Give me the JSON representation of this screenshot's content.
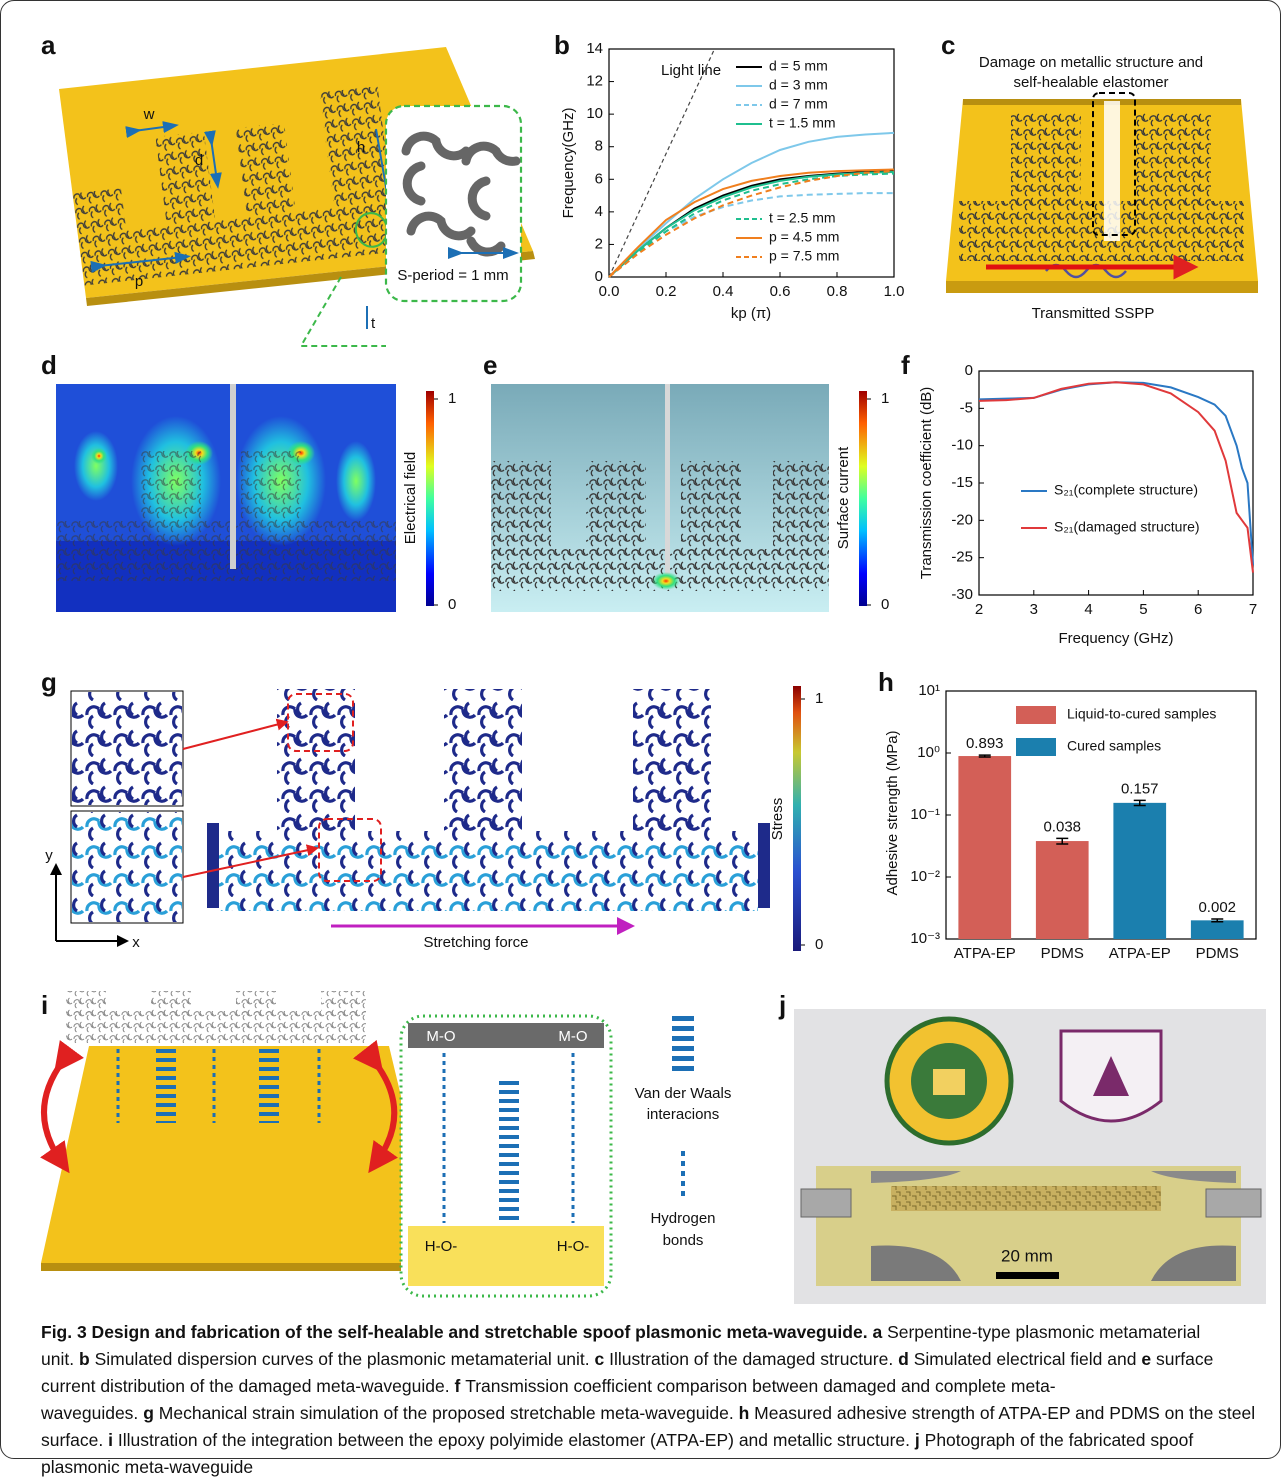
{
  "panels": {
    "a": {
      "letter": "a",
      "dims": [
        "w",
        "d",
        "h",
        "p",
        "t"
      ],
      "inset_label": "S-period = 1 mm"
    },
    "b": {
      "letter": "b",
      "type": "line",
      "xlabel": "kp (π)",
      "ylabel": "Frequency(GHz)",
      "annotation": "Light line",
      "xlim": [
        0,
        1
      ],
      "ylim": [
        0,
        14
      ],
      "xticks": [
        {
          "value": 0,
          "label": "0.0"
        },
        {
          "value": 0.2,
          "label": "0.2"
        },
        {
          "value": 0.4,
          "label": "0.4"
        },
        {
          "value": 0.6,
          "label": "0.6"
        },
        {
          "value": 0.8,
          "label": "0.8"
        },
        {
          "value": 1,
          "label": "1.0"
        }
      ],
      "yticks": [
        0,
        2,
        4,
        6,
        8,
        10,
        12,
        14
      ],
      "light_line": {
        "x": [
          0,
          0.37
        ],
        "values": [
          0,
          14
        ]
      },
      "x": [
        0,
        0.1,
        0.2,
        0.3,
        0.4,
        0.5,
        0.6,
        0.7,
        0.8,
        0.9,
        1.0
      ],
      "series": [
        {
          "name": "d = 5 mm",
          "color": "#000000",
          "dashed": false,
          "values": [
            0,
            1.6,
            3.0,
            4.2,
            5.0,
            5.6,
            6.0,
            6.2,
            6.35,
            6.45,
            6.5
          ]
        },
        {
          "name": "d = 3 mm",
          "color": "#7ec8ea",
          "dashed": false,
          "values": [
            0,
            1.7,
            3.3,
            4.8,
            6.0,
            7.0,
            7.8,
            8.3,
            8.6,
            8.75,
            8.85
          ]
        },
        {
          "name": "d = 7 mm",
          "color": "#7ec8ea",
          "dashed": true,
          "values": [
            0,
            1.5,
            2.8,
            3.7,
            4.3,
            4.7,
            4.95,
            5.05,
            5.1,
            5.15,
            5.15
          ]
        },
        {
          "name": "t = 1.5 mm",
          "color": "#1fbf8f",
          "dashed": false,
          "values": [
            0,
            1.6,
            3.0,
            4.1,
            4.9,
            5.5,
            5.9,
            6.15,
            6.3,
            6.4,
            6.45
          ]
        },
        {
          "name": "t = 2.5 mm",
          "color": "#1fbf8f",
          "dashed": true,
          "values": [
            0,
            1.5,
            2.8,
            3.9,
            4.7,
            5.3,
            5.7,
            6.0,
            6.2,
            6.3,
            6.35
          ]
        },
        {
          "name": "p = 4.5 mm",
          "color": "#f07f1e",
          "dashed": false,
          "values": [
            0,
            1.8,
            3.5,
            4.6,
            5.4,
            5.9,
            6.2,
            6.4,
            6.5,
            6.55,
            6.6
          ]
        },
        {
          "name": "p = 7.5 mm",
          "color": "#f07f1e",
          "dashed": true,
          "values": [
            0,
            1.4,
            2.6,
            3.6,
            4.4,
            5.0,
            5.5,
            5.9,
            6.2,
            6.4,
            6.5
          ]
        }
      ]
    },
    "c": {
      "letter": "c",
      "title_lines": [
        "Damage on metallic structure and",
        "self-healable elastomer"
      ],
      "bottom_label": "Transmitted SSPP"
    },
    "d": {
      "letter": "d",
      "colorbar": {
        "label": "Electrical field",
        "ticks": [
          0,
          1
        ]
      }
    },
    "e": {
      "letter": "e",
      "colorbar": {
        "label": "Surface current",
        "ticks": [
          0,
          1
        ]
      }
    },
    "f": {
      "letter": "f",
      "type": "line",
      "xlabel": "Frequency (GHz)",
      "ylabel": "Transmission coefficient (dB)",
      "xlim": [
        2,
        7
      ],
      "ylim": [
        -30,
        0
      ],
      "xticks": [
        2,
        3,
        4,
        5,
        6,
        7
      ],
      "yticks": [
        -30,
        -25,
        -20,
        -15,
        -10,
        -5,
        0
      ],
      "x": [
        2,
        2.5,
        3,
        3.5,
        4,
        4.5,
        5,
        5.5,
        6,
        6.3,
        6.5,
        6.7,
        6.8,
        6.9,
        7.0
      ],
      "series": [
        {
          "name": "S₂₁(complete structure)",
          "color": "#2a78c4",
          "dashed": false,
          "values": [
            -3.8,
            -3.7,
            -3.6,
            -2.5,
            -1.8,
            -1.5,
            -1.6,
            -2.2,
            -3.5,
            -4.5,
            -6,
            -10,
            -13,
            -15,
            -26
          ]
        },
        {
          "name": "S₂₁(damaged structure)",
          "color": "#e0393b",
          "dashed": false,
          "values": [
            -4,
            -3.9,
            -3.6,
            -2.4,
            -1.7,
            -1.5,
            -1.8,
            -3,
            -5.5,
            -8,
            -12,
            -19,
            -20,
            -21,
            -27
          ]
        }
      ]
    },
    "g": {
      "letter": "g",
      "force_label": "Stretching force",
      "axis_y": "y",
      "axis_x": "x",
      "colorbar": {
        "label": "Stress",
        "ticks": [
          0,
          1
        ]
      }
    },
    "h": {
      "letter": "h",
      "type": "bar",
      "log_scale": true,
      "ylabel": "Adhesive strength (MPa)",
      "categories": [
        "ATPA-EP",
        "PDMS",
        "ATPA-EP",
        "PDMS"
      ],
      "ylim": [
        0.001,
        10
      ],
      "yticks": [
        {
          "value": 0.001,
          "label": "10⁻³"
        },
        {
          "value": 0.01,
          "label": "10⁻²"
        },
        {
          "value": 0.1,
          "label": "10⁻¹"
        },
        {
          "value": 1,
          "label": "10⁰"
        },
        {
          "value": 10,
          "label": "10¹"
        }
      ],
      "series": [
        {
          "name": "Liquid-to-cured samples",
          "color": "#d35f57",
          "values": [
            0.893,
            0.038,
            null,
            null
          ],
          "errors": [
            0.03,
            0.004,
            null,
            null
          ]
        },
        {
          "name": "Cured samples",
          "color": "#1b7fae",
          "values": [
            null,
            null,
            0.157,
            0.002
          ],
          "errors": [
            null,
            null,
            0.015,
            0.0001
          ]
        }
      ]
    },
    "i": {
      "letter": "i",
      "inset": {
        "top_left": "M-O",
        "top_right": "M-O",
        "bottom_left": "H-O-",
        "bottom_right": "H-O-"
      },
      "legend": {
        "vdw": [
          "Van der Waals",
          "interacions"
        ],
        "hbond": [
          "Hydrogen",
          "bonds"
        ]
      }
    },
    "j": {
      "letter": "j",
      "scale_label": "20 mm"
    }
  },
  "caption": {
    "title": "Fig. 3 Design and fabrication of the self-healable and stretchable spoof plasmonic meta-waveguide.",
    "parts": [
      {
        "letter": "a",
        "text": "Serpentine-type plasmonic metamaterial unit."
      },
      {
        "letter": "b",
        "text": "Simulated dispersion curves of the plasmonic metamaterial unit."
      },
      {
        "letter": "c",
        "text": "Illustration of the damaged structure."
      },
      {
        "letter": "d",
        "text": "Simulated electrical field and"
      },
      {
        "letter": "e",
        "text": "surface current distribution of the damaged meta-waveguide."
      },
      {
        "letter": "f",
        "text": "Transmission coefficient comparison between damaged and complete meta-waveguides."
      },
      {
        "letter": "g",
        "text": "Mechanical strain simulation of the proposed stretchable meta-waveguide."
      },
      {
        "letter": "h",
        "text": "Measured adhesive strength of ATPA-EP and PDMS on the steel surface."
      },
      {
        "letter": "i",
        "text": "Illustration of the integration between the epoxy polyimide elastomer (ATPA-EP) and metallic structure."
      },
      {
        "letter": "j",
        "text": "Photograph of the fabricated spoof plasmonic meta-waveguide"
      }
    ]
  }
}
